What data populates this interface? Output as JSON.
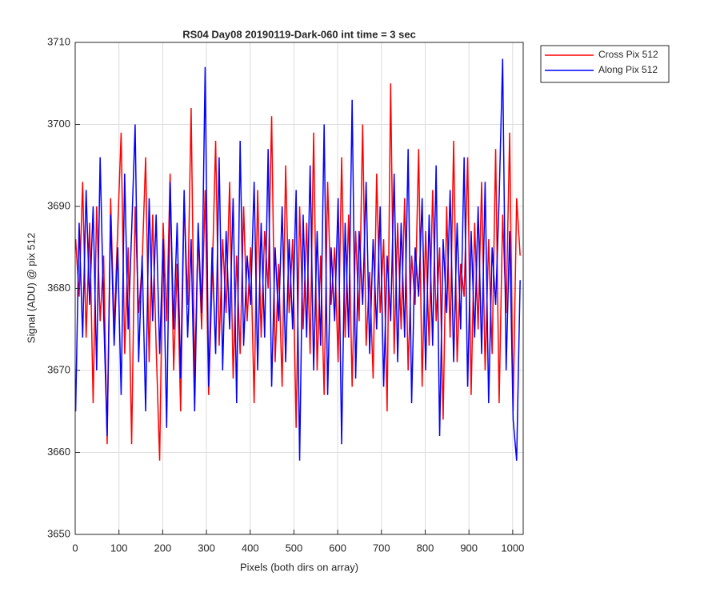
{
  "chart_data": {
    "type": "line",
    "title": "RS04 Day08 20190119-Dark-060 int time = 3 sec",
    "x_label": "Pixels (both dirs on array)",
    "y_label": "Signal (ADU) @ pix 512",
    "x": [
      1,
      9,
      17,
      25,
      33,
      41,
      49,
      57,
      65,
      73,
      81,
      89,
      97,
      105,
      113,
      121,
      129,
      137,
      145,
      153,
      161,
      169,
      177,
      185,
      193,
      201,
      209,
      217,
      225,
      233,
      241,
      249,
      257,
      265,
      273,
      281,
      289,
      297,
      305,
      313,
      321,
      329,
      337,
      345,
      353,
      361,
      369,
      377,
      385,
      393,
      401,
      409,
      417,
      425,
      433,
      441,
      449,
      457,
      465,
      473,
      481,
      489,
      497,
      505,
      513,
      521,
      529,
      537,
      545,
      553,
      561,
      569,
      577,
      585,
      593,
      601,
      609,
      617,
      625,
      633,
      641,
      649,
      657,
      665,
      673,
      681,
      689,
      697,
      705,
      713,
      721,
      729,
      737,
      745,
      753,
      761,
      769,
      777,
      785,
      793,
      801,
      809,
      817,
      825,
      833,
      841,
      849,
      857,
      865,
      873,
      881,
      889,
      897,
      905,
      913,
      921,
      929,
      937,
      945,
      953,
      961,
      969,
      977,
      985,
      993,
      1001,
      1009,
      1017
    ],
    "series": [
      {
        "name": "Cross Pix 512",
        "color": "#ff0000",
        "values": [
          3686,
          3679,
          3693,
          3674,
          3688,
          3666,
          3690,
          3676,
          3684,
          3661,
          3691,
          3675,
          3687,
          3699,
          3672,
          3685,
          3661,
          3690,
          3677,
          3683,
          3696,
          3671,
          3689,
          3673,
          3659,
          3688,
          3676,
          3694,
          3670,
          3683,
          3665,
          3691,
          3678,
          3702,
          3669,
          3687,
          3675,
          3692,
          3667,
          3681,
          3698,
          3673,
          3686,
          3677,
          3693,
          3669,
          3684,
          3672,
          3690,
          3676,
          3685,
          3666,
          3692,
          3674,
          3687,
          3680,
          3701,
          3671,
          3683,
          3668,
          3695,
          3677,
          3686,
          3663,
          3690,
          3675,
          3688,
          3672,
          3699,
          3670,
          3684,
          3667,
          3693,
          3678,
          3685,
          3671,
          3696,
          3674,
          3689,
          3668,
          3687,
          3676,
          3700,
          3673,
          3682,
          3669,
          3694,
          3677,
          3686,
          3665,
          3705,
          3672,
          3688,
          3675,
          3691,
          3670,
          3684,
          3678,
          3697,
          3668,
          3687,
          3673,
          3692,
          3676,
          3685,
          3664,
          3690,
          3674,
          3698,
          3671,
          3683,
          3679,
          3696,
          3667,
          3688,
          3675,
          3693,
          3670,
          3686,
          3672,
          3697,
          3666,
          3689,
          3677,
          3699,
          3665,
          3691,
          3684
        ]
      },
      {
        "name": "Along Pix 512",
        "color": "#0000ff",
        "values": [
          3665,
          3688,
          3674,
          3692,
          3678,
          3690,
          3670,
          3696,
          3677,
          3662,
          3689,
          3673,
          3685,
          3667,
          3694,
          3675,
          3687,
          3700,
          3671,
          3684,
          3665,
          3691,
          3676,
          3689,
          3672,
          3686,
          3663,
          3693,
          3675,
          3688,
          3669,
          3692,
          3674,
          3686,
          3665,
          3688,
          3677,
          3707,
          3668,
          3685,
          3672,
          3696,
          3670,
          3687,
          3675,
          3691,
          3666,
          3698,
          3673,
          3684,
          3678,
          3693,
          3670,
          3688,
          3674,
          3697,
          3668,
          3685,
          3676,
          3690,
          3671,
          3686,
          3675,
          3692,
          3659,
          3689,
          3674,
          3695,
          3670,
          3687,
          3673,
          3700,
          3667,
          3685,
          3676,
          3691,
          3661,
          3688,
          3674,
          3703,
          3669,
          3687,
          3678,
          3693,
          3672,
          3686,
          3675,
          3690,
          3668,
          3684,
          3676,
          3694,
          3671,
          3688,
          3674,
          3697,
          3666,
          3685,
          3679,
          3691,
          3670,
          3689,
          3673,
          3695,
          3662,
          3686,
          3677,
          3692,
          3671,
          3688,
          3675,
          3696,
          3668,
          3687,
          3674,
          3690,
          3672,
          3693,
          3666,
          3685,
          3678,
          3691,
          3708,
          3670,
          3687,
          3664,
          3659,
          3681
        ]
      }
    ],
    "xlim": [
      0,
      1024
    ],
    "xticks": [
      0,
      100,
      200,
      300,
      400,
      500,
      600,
      700,
      800,
      900,
      1000
    ],
    "ylim": [
      3650,
      3710
    ],
    "yticks": [
      3650,
      3660,
      3670,
      3680,
      3690,
      3700,
      3710
    ],
    "grid": true,
    "legend": "northeastoutside"
  }
}
